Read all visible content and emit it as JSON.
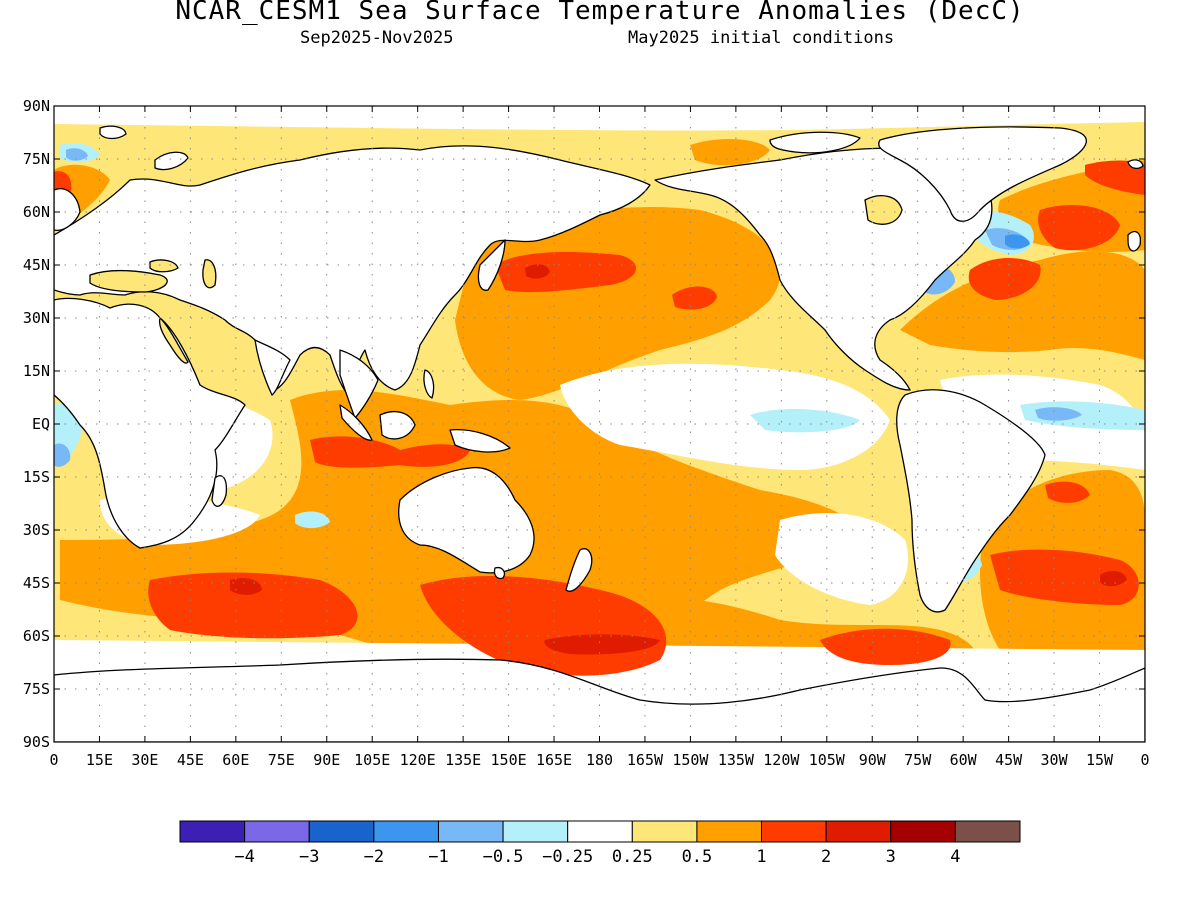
{
  "header": {
    "title": "NCAR_CESM1 Sea Surface Temperature Anomalies (DecC)",
    "period": "Sep2025-Nov2025",
    "initial": "May2025 initial conditions"
  },
  "map": {
    "projection": "equirectangular",
    "lon_range": [
      0,
      360
    ],
    "lat_range": [
      -90,
      90
    ],
    "lat_labels": [
      "90N",
      "75N",
      "60N",
      "45N",
      "30N",
      "15N",
      "EQ",
      "15S",
      "30S",
      "45S",
      "60S",
      "75S",
      "90S"
    ],
    "lon_labels": [
      "0",
      "15E",
      "30E",
      "45E",
      "60E",
      "75E",
      "90E",
      "105E",
      "120E",
      "135E",
      "150E",
      "165E",
      "180",
      "165W",
      "150W",
      "135W",
      "120W",
      "105W",
      "90W",
      "75W",
      "60W",
      "45W",
      "30W",
      "15W",
      "0"
    ],
    "grid": true
  },
  "colorbar": {
    "colors": [
      "#3c20b4",
      "#7a68e8",
      "#1a62cc",
      "#3c96f0",
      "#78b8f6",
      "#b4f0fa",
      "#ffffff",
      "#fee678",
      "#ffa000",
      "#ff3c00",
      "#e01c00",
      "#a50000",
      "#7a5048"
    ],
    "labels": [
      "-4",
      "-3",
      "-2",
      "-1",
      "-0.5",
      "-0.25",
      "0.25",
      "0.5",
      "1",
      "2",
      "3",
      "4"
    ]
  },
  "colors": {
    "land": "#ffffff",
    "coast": "#000000",
    "grid": "#8a8a8a"
  }
}
